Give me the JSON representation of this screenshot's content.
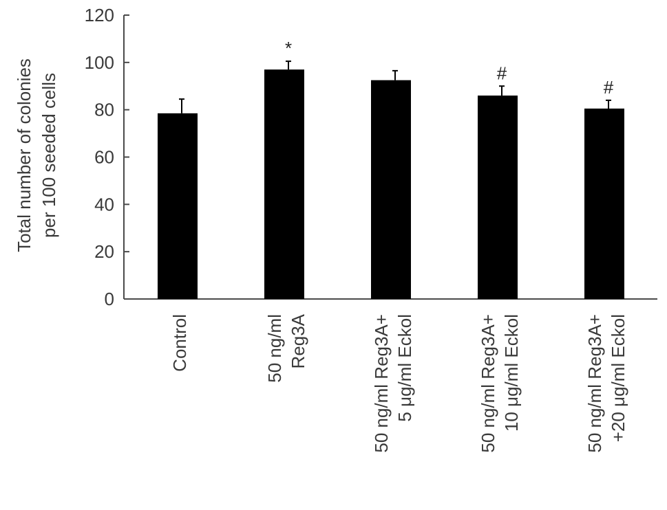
{
  "chart_data": {
    "type": "bar",
    "title": "",
    "xlabel": "",
    "ylabel": [
      "Total number of colonies",
      "per 100 seeded cells"
    ],
    "ylim": [
      0,
      120
    ],
    "yticks": [
      0,
      20,
      40,
      60,
      80,
      100,
      120
    ],
    "grid": false,
    "legend": "none",
    "categories": [
      [
        "Control"
      ],
      [
        "50 ng/ml",
        "Reg3A"
      ],
      [
        "50 ng/ml Reg3A+",
        "5 μg/ml Eckol"
      ],
      [
        "50 ng/ml Reg3A+",
        "10 μg/ml Eckol"
      ],
      [
        "50 ng/ml Reg3A+",
        "+20 μg/ml Eckol"
      ]
    ],
    "series": [
      {
        "values": [
          78.5,
          97,
          92.5,
          86,
          80.5
        ],
        "errors": [
          6,
          3.5,
          4,
          4,
          3.5
        ],
        "color": "#000000"
      }
    ],
    "annotations": [
      "",
      "*",
      "",
      "#",
      "#"
    ]
  }
}
